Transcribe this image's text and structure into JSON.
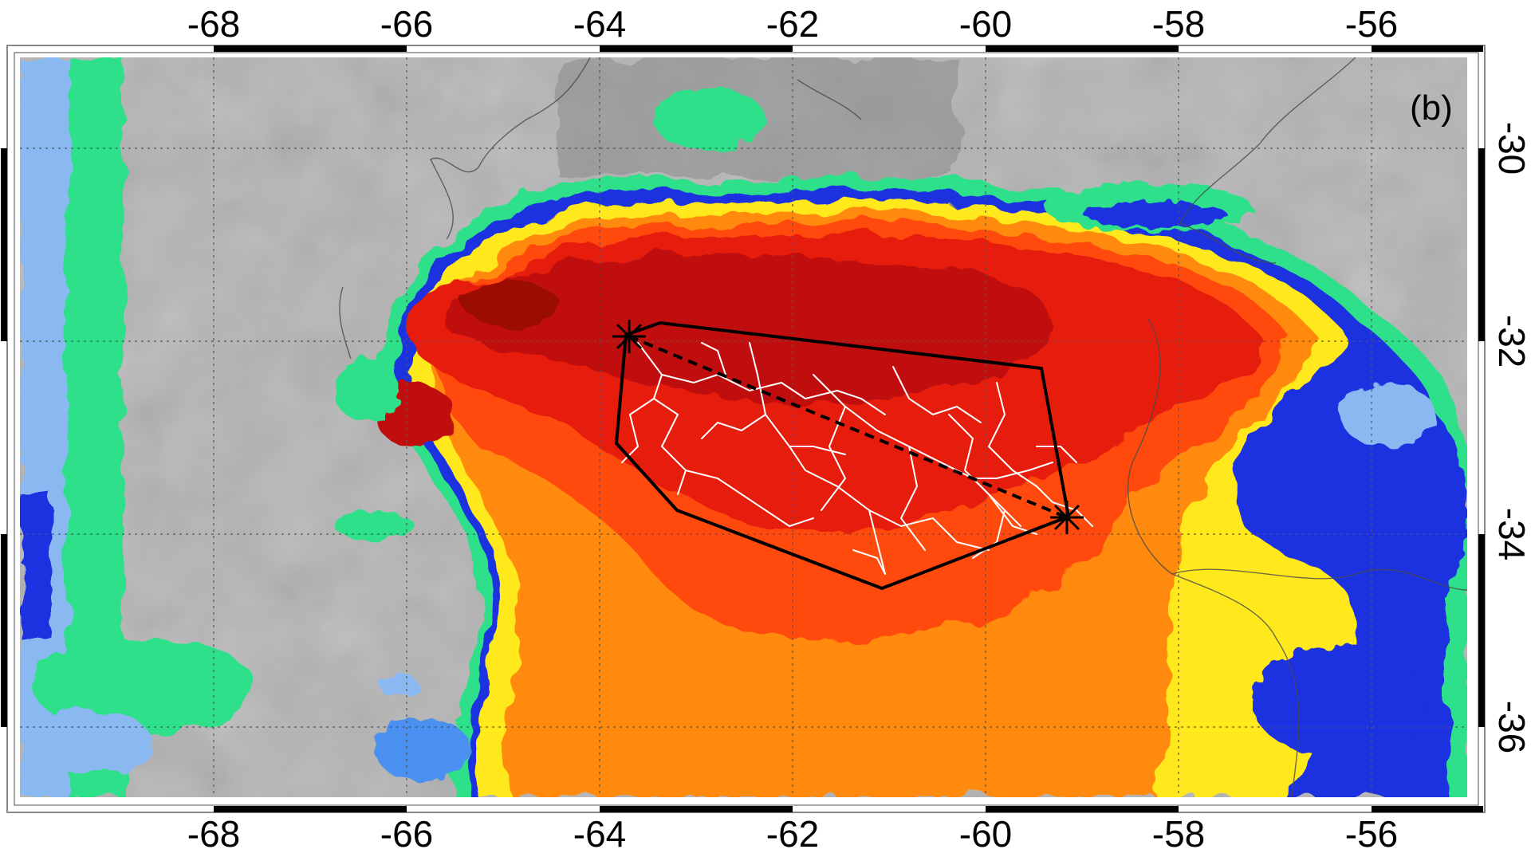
{
  "panel_label": "(b)",
  "top_axis": {
    "ticks": [
      "-68",
      "-66",
      "-64",
      "-62",
      "-60",
      "-58",
      "-56"
    ]
  },
  "bottom_axis": {
    "ticks": [
      "-68",
      "-66",
      "-64",
      "-62",
      "-60",
      "-58",
      "-56"
    ]
  },
  "right_axis": {
    "ticks": [
      "-30",
      "-32",
      "-34",
      "-36"
    ]
  },
  "colors": {
    "background_gray": "#b4b4b4",
    "cloud_green": "#2ee08a",
    "cloud_blue": "#1a30e0",
    "cloud_light_blue": "#8ab8f0",
    "cloud_yellow": "#ffe81a",
    "cloud_orange": "#ff8a10",
    "cloud_red_orange": "#ff4a10",
    "cloud_red": "#e61e0e",
    "cloud_dark_red": "#c01008",
    "flash_channels": "#ffffff",
    "polygon_outline": "#000000"
  },
  "map_region": {
    "lon_range": [
      -70,
      -55
    ],
    "lat_range": [
      -37,
      -28.5
    ]
  },
  "flash_polygon": {
    "vertices_lonlat": [
      [
        -63.7,
        -32.0
      ],
      [
        -63.4,
        -31.9
      ],
      [
        -59.5,
        -32.3
      ],
      [
        -59.2,
        -34.0
      ],
      [
        -61.1,
        -34.6
      ],
      [
        -63.3,
        -33.8
      ],
      [
        -63.8,
        -33.1
      ]
    ],
    "endpoint_a": [
      -63.7,
      -32.0
    ],
    "endpoint_b": [
      -59.2,
      -34.0
    ]
  }
}
